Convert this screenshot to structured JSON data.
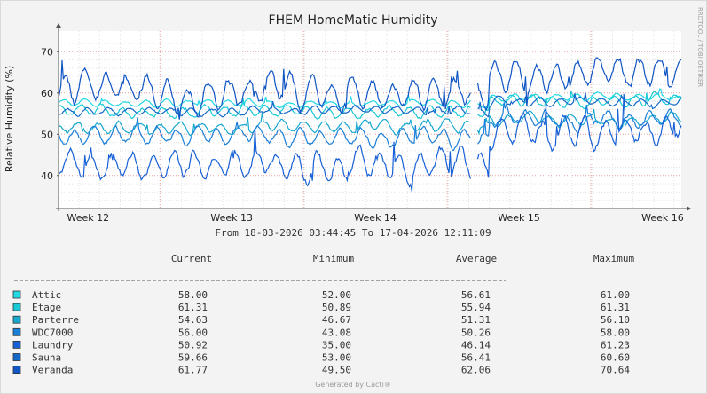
{
  "chart_data": {
    "type": "line",
    "title": "FHEM HomeMatic Humidity",
    "ylabel": "Relative Humidity (%)",
    "xlabel": "",
    "ylim": [
      32,
      75
    ],
    "yticks": [
      40,
      50,
      60,
      70
    ],
    "week_labels": [
      "Week 12",
      "Week 13",
      "Week 14",
      "Week 15",
      "Week 16"
    ],
    "x_range_days": [
      0,
      30.35
    ],
    "week_label_days": [
      1.44,
      8.44,
      15.44,
      22.44,
      29.44
    ],
    "watermark": "RRDTOOL / TOBI OETIKER",
    "period_text": "From 18-03-2026 03:44:45 To 17-04-2026 12:11:09",
    "columns": [
      "Current",
      "Minimum",
      "Average",
      "Maximum"
    ],
    "grid": true,
    "series": [
      {
        "name": "Attic",
        "color": "#22d8e3",
        "current": "58.00",
        "minimum": "52.00",
        "average": "56.61",
        "maximum": "61.00",
        "base": 57.5,
        "amp": 1.2,
        "range": [
          52,
          61
        ]
      },
      {
        "name": "Etage",
        "color": "#19c9d6",
        "current": "61.31",
        "minimum": "50.89",
        "average": "55.94",
        "maximum": "61.31",
        "base": 55.5,
        "amp": 2.0,
        "range": [
          50.9,
          61.3
        ]
      },
      {
        "name": "Parterre",
        "color": "#16a8cf",
        "current": "54.63",
        "minimum": "46.67",
        "average": "51.31",
        "maximum": "56.10",
        "base": 51.5,
        "amp": 2.0,
        "range": [
          46.7,
          56.1
        ]
      },
      {
        "name": "WDC7000",
        "color": "#1a7fd8",
        "current": "56.00",
        "minimum": "43.08",
        "average": "50.26",
        "maximum": "58.00",
        "base": 49.5,
        "amp": 3.0,
        "range": [
          43.1,
          58
        ]
      },
      {
        "name": "Laundry",
        "color": "#1760d6",
        "current": "50.92",
        "minimum": "35.00",
        "average": "46.14",
        "maximum": "61.23",
        "base": 42.5,
        "amp": 5.0,
        "range": [
          35,
          61.2
        ]
      },
      {
        "name": "Sauna",
        "color": "#1468c8",
        "current": "59.66",
        "minimum": "53.00",
        "average": "56.41",
        "maximum": "60.60",
        "base": 55.8,
        "amp": 1.4,
        "range": [
          53,
          60.6
        ]
      },
      {
        "name": "Veranda",
        "color": "#0f55c4",
        "current": "61.77",
        "minimum": "49.50",
        "average": "62.06",
        "maximum": "70.64",
        "base": 60.5,
        "amp": 5.5,
        "range": [
          49.5,
          70.6
        ]
      }
    ]
  },
  "footer": "Generated by Cacti®"
}
